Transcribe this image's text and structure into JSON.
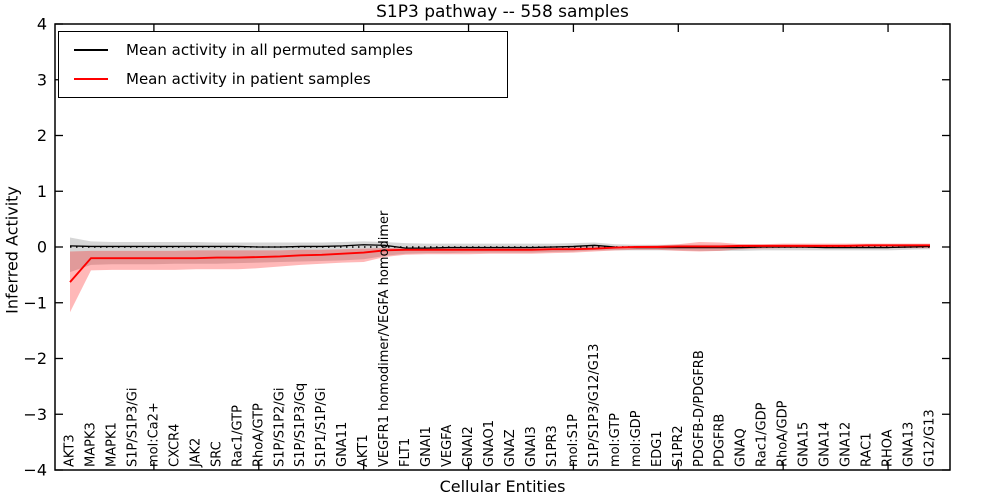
{
  "figure": {
    "title": "S1P3 pathway -- 558 samples",
    "xlabel": "Cellular Entities",
    "ylabel": "Inferred Activity"
  },
  "legend": {
    "position": "upper left",
    "items": [
      {
        "key": "permuted",
        "label": "Mean activity in all permuted samples",
        "color": "#000000"
      },
      {
        "key": "patient",
        "label": "Mean activity in patient samples",
        "color": "#ff0000"
      }
    ]
  },
  "chart_data": {
    "type": "line",
    "title": "S1P3 pathway -- 558 samples",
    "xlabel": "Cellular Entities",
    "ylabel": "Inferred Activity",
    "ylim": [
      -4,
      4
    ],
    "yticks": [
      -4,
      -3,
      -2,
      -1,
      0,
      1,
      2,
      3,
      4
    ],
    "xtick_start_index": 4,
    "xtick_step": 5,
    "grid": false,
    "legend_position": "upper left",
    "reference_line": {
      "y": 0,
      "style": "dotted",
      "color": "#000000"
    },
    "categories": [
      "AKT3",
      "MAPK3",
      "MAPK1",
      "S1P/S1P3/Gi",
      "mol:Ca2+",
      "CXCR4",
      "JAK2",
      "SRC",
      "Rac1/GTP",
      "RhoA/GTP",
      "S1P/S1P2/Gi",
      "S1P/S1P3/Gq",
      "S1P1/S1P/Gi",
      "GNA11",
      "AKT1",
      "VEGFR1 homodimer/VEGFA homodimer",
      "FLT1",
      "GNAI1",
      "VEGFA",
      "GNAI2",
      "GNAO1",
      "GNAZ",
      "GNAI3",
      "S1PR3",
      "mol:S1P",
      "S1P/S1P3/G12/G13",
      "mol:GTP",
      "mol:GDP",
      "EDG1",
      "S1PR2",
      "PDGFB-D/PDGFRB",
      "PDGFRB",
      "GNAQ",
      "Rac1/GDP",
      "RhoA/GDP",
      "GNA15",
      "GNA14",
      "GNA12",
      "RAC1",
      "RHOA",
      "GNA13",
      "G12/G13"
    ],
    "series": [
      {
        "key": "permuted",
        "name": "Mean activity in all permuted samples",
        "color": "#000000",
        "line_width": 1.3,
        "band_color": "#000000",
        "band_opacity": 0.16,
        "values": [
          0.02,
          0.01,
          0.01,
          0.01,
          0.01,
          0.01,
          0.01,
          0.01,
          0.01,
          0.0,
          0.0,
          0.01,
          0.01,
          0.02,
          0.04,
          0.03,
          -0.02,
          -0.02,
          -0.01,
          -0.01,
          -0.01,
          -0.01,
          -0.01,
          0.0,
          0.01,
          0.03,
          0.0,
          -0.01,
          -0.01,
          -0.01,
          -0.01,
          -0.01,
          -0.01,
          0.0,
          0.0,
          0.0,
          -0.01,
          -0.01,
          -0.01,
          -0.01,
          0.0,
          0.01
        ],
        "band_upper": [
          0.17,
          0.1,
          0.09,
          0.09,
          0.09,
          0.09,
          0.09,
          0.08,
          0.08,
          0.08,
          0.08,
          0.08,
          0.08,
          0.09,
          0.1,
          0.09,
          0.07,
          0.06,
          0.06,
          0.06,
          0.06,
          0.06,
          0.06,
          0.06,
          0.07,
          0.08,
          0.05,
          0.04,
          0.04,
          0.04,
          0.04,
          0.04,
          0.04,
          0.04,
          0.04,
          0.04,
          0.03,
          0.03,
          0.03,
          0.03,
          0.03,
          0.04
        ],
        "band_lower": [
          -0.45,
          -0.32,
          -0.31,
          -0.31,
          -0.31,
          -0.3,
          -0.3,
          -0.3,
          -0.29,
          -0.28,
          -0.27,
          -0.26,
          -0.25,
          -0.24,
          -0.22,
          -0.16,
          -0.12,
          -0.11,
          -0.11,
          -0.1,
          -0.1,
          -0.1,
          -0.1,
          -0.09,
          -0.08,
          -0.06,
          -0.06,
          -0.06,
          -0.06,
          -0.06,
          -0.07,
          -0.07,
          -0.07,
          -0.06,
          -0.06,
          -0.06,
          -0.06,
          -0.06,
          -0.06,
          -0.06,
          -0.05,
          -0.04
        ]
      },
      {
        "key": "patient",
        "name": "Mean activity in patient samples",
        "color": "#ff0000",
        "line_width": 1.9,
        "band_color": "#ff0000",
        "band_opacity": 0.28,
        "values": [
          -0.63,
          -0.2,
          -0.2,
          -0.2,
          -0.2,
          -0.2,
          -0.2,
          -0.19,
          -0.19,
          -0.18,
          -0.17,
          -0.15,
          -0.14,
          -0.12,
          -0.1,
          -0.06,
          -0.05,
          -0.05,
          -0.05,
          -0.05,
          -0.05,
          -0.05,
          -0.05,
          -0.04,
          -0.04,
          -0.03,
          -0.01,
          0.0,
          0.0,
          0.01,
          0.01,
          0.01,
          0.02,
          0.02,
          0.02,
          0.02,
          0.02,
          0.02,
          0.03,
          0.03,
          0.03,
          0.03
        ],
        "band_upper": [
          -0.08,
          -0.07,
          -0.07,
          -0.07,
          -0.07,
          -0.07,
          -0.06,
          -0.06,
          -0.06,
          -0.06,
          -0.06,
          -0.05,
          -0.05,
          -0.04,
          -0.03,
          -0.02,
          -0.01,
          -0.01,
          -0.01,
          -0.01,
          -0.01,
          -0.01,
          -0.01,
          0.0,
          0.0,
          0.01,
          0.01,
          0.02,
          0.03,
          0.05,
          0.09,
          0.08,
          0.05,
          0.05,
          0.06,
          0.06,
          0.06,
          0.06,
          0.06,
          0.06,
          0.06,
          0.06
        ],
        "band_lower": [
          -1.17,
          -0.42,
          -0.41,
          -0.41,
          -0.41,
          -0.41,
          -0.4,
          -0.4,
          -0.4,
          -0.38,
          -0.35,
          -0.32,
          -0.3,
          -0.28,
          -0.27,
          -0.18,
          -0.14,
          -0.13,
          -0.13,
          -0.13,
          -0.12,
          -0.12,
          -0.12,
          -0.11,
          -0.1,
          -0.08,
          -0.06,
          -0.05,
          -0.05,
          -0.07,
          -0.08,
          -0.07,
          -0.04,
          -0.03,
          -0.02,
          -0.02,
          -0.02,
          -0.02,
          -0.02,
          -0.02,
          -0.02,
          -0.02
        ]
      }
    ]
  }
}
